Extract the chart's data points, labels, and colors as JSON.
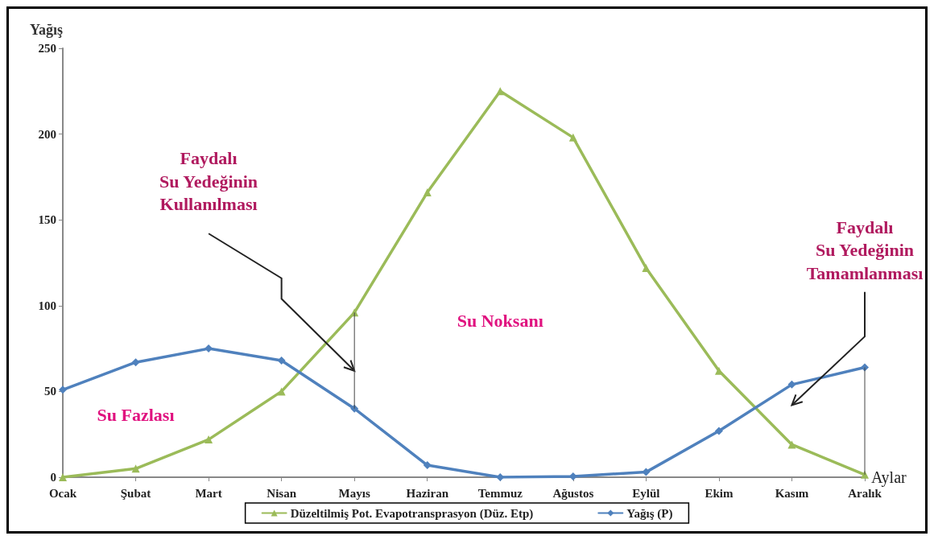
{
  "chart_data": {
    "type": "line",
    "ylabel": "Yağış",
    "xlabel": "Aylar",
    "categories": [
      "Ocak",
      "Şubat",
      "Mart",
      "Nisan",
      "Mayıs",
      "Haziran",
      "Temmuz",
      "Ağustos",
      "Eylül",
      "Ekim",
      "Kasım",
      "Aralık"
    ],
    "series": [
      {
        "name": "Düzeltilmiş Pot. Evapotransprasyon (Düz. Etp)",
        "color": "#9bbb59",
        "marker": "triangle",
        "values": [
          0,
          5,
          22,
          50,
          96,
          166,
          225,
          198,
          122,
          62,
          19,
          1.5
        ]
      },
      {
        "name": "Yağış (P)",
        "color": "#4f81bd",
        "marker": "diamond",
        "values": [
          51,
          67,
          75,
          68,
          40,
          7,
          0,
          0.5,
          3,
          27,
          54,
          64
        ]
      }
    ],
    "ylim": [
      0,
      250
    ],
    "yticks": [
      0,
      50,
      100,
      150,
      200,
      250
    ],
    "grid": false,
    "legend": "bottom",
    "annotations": [
      "Faydalı\nSu Yedeğinin\nKullanılması",
      "Faydalı\nSu Yedeğinin\nTamamlanması",
      "Su Noksanı",
      "Su Fazlası"
    ]
  }
}
